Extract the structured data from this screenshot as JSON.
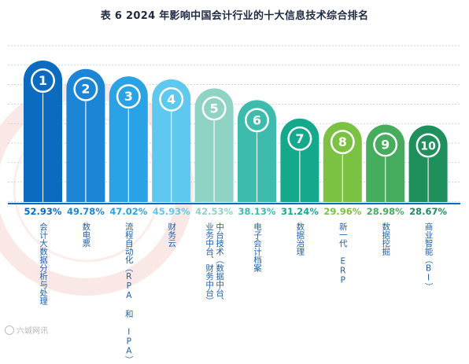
{
  "chart_data": {
    "type": "bar",
    "title": "表 6  2024 年影响中国会计行业的十大信息技术综合排名",
    "categories": [
      "会计大数据分析与处理",
      "数电票",
      "流程自动化（RPA 和 IPA）",
      "财务云",
      "中台技术（数据中台、\n业务中台、财务中台）",
      "电子会计档案",
      "数据治理",
      "新一代 ERP",
      "数据挖掘",
      "商业智能（BI）"
    ],
    "ranks": [
      "1",
      "2",
      "3",
      "4",
      "5",
      "6",
      "7",
      "8",
      "9",
      "10"
    ],
    "values": [
      52.93,
      49.78,
      47.02,
      45.93,
      42.53,
      38.13,
      31.24,
      29.96,
      28.98,
      28.67
    ],
    "value_labels": [
      "52.93%",
      "49.78%",
      "47.02%",
      "45.93%",
      "42.53%",
      "38.13%",
      "31.24%",
      "29.96%",
      "28.98%",
      "28.67%"
    ],
    "colors": [
      "#0b6bbf",
      "#1d85d6",
      "#2aa3e6",
      "#5fc8ef",
      "#8fd3c4",
      "#3dbcae",
      "#14a88c",
      "#7cc242",
      "#46ad5f",
      "#1f8f5c"
    ],
    "grid": true,
    "xlabel": "",
    "ylabel": ""
  },
  "watermark": "六城网讯"
}
